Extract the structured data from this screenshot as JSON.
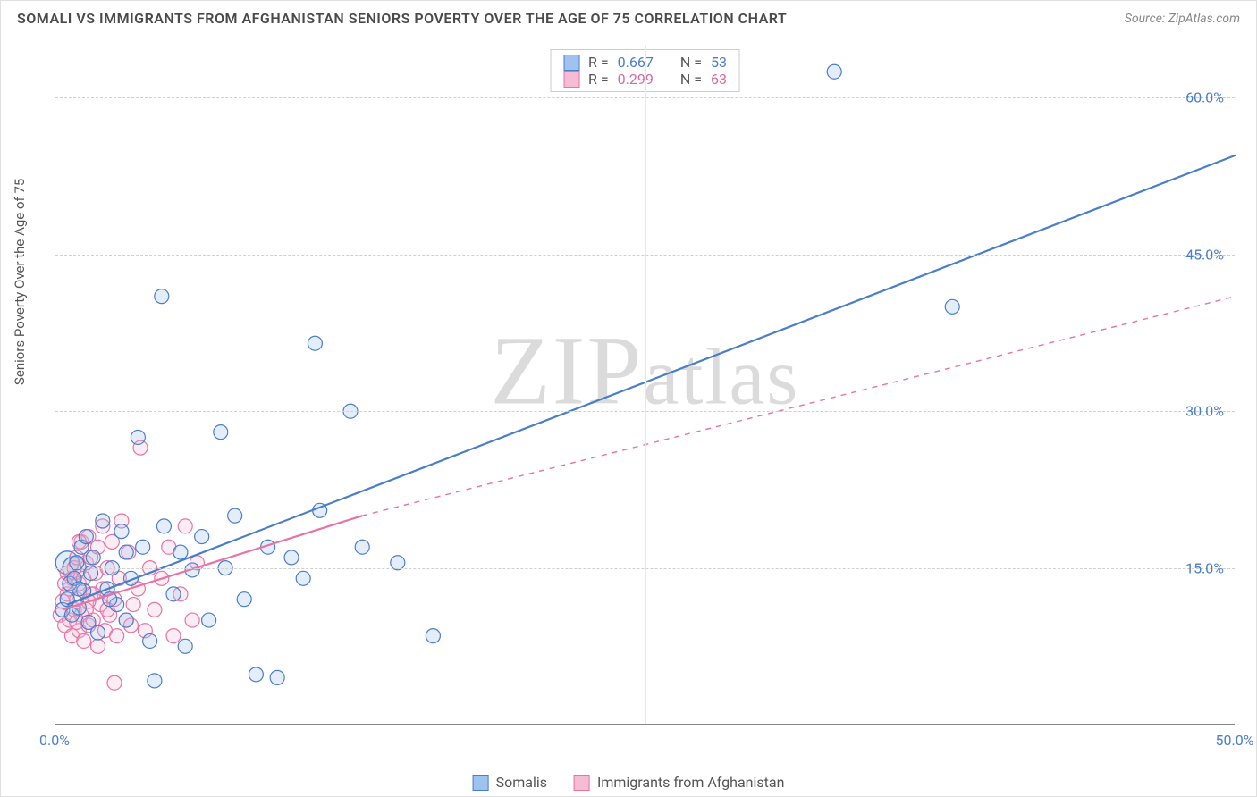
{
  "title": "SOMALI VS IMMIGRANTS FROM AFGHANISTAN SENIORS POVERTY OVER THE AGE OF 75 CORRELATION CHART",
  "source": "Source: ZipAtlas.com",
  "y_axis_label": "Seniors Poverty Over the Age of 75",
  "watermark": "ZIPatlas",
  "chart": {
    "type": "scatter",
    "background_color": "#ffffff",
    "grid_color": "#d0d0d0",
    "axis_color": "#888888",
    "tick_label_color": "#4a7ec9",
    "xlim": [
      0,
      50
    ],
    "ylim": [
      0,
      65
    ],
    "x_ticks": [
      0.0,
      50.0
    ],
    "x_tick_labels": [
      "0.0%",
      "50.0%"
    ],
    "y_ticks": [
      15.0,
      30.0,
      45.0,
      60.0
    ],
    "y_tick_labels": [
      "15.0%",
      "30.0%",
      "45.0%",
      "60.0%"
    ],
    "vgrid_at": [
      25.0
    ],
    "marker_radius": 8,
    "marker_stroke_width": 1.2,
    "marker_fill_opacity": 0.28,
    "line_width": 2.2
  },
  "legend_stats": {
    "rows": [
      {
        "swatch_fill": "#9ec3ef",
        "swatch_stroke": "#4a7ec9",
        "r_label": "R =",
        "r_value": "0.667",
        "n_label": "N =",
        "n_value": "53",
        "value_color": "#4a7ec9"
      },
      {
        "swatch_fill": "#f6bcd3",
        "swatch_stroke": "#e973a4",
        "r_label": "R =",
        "r_value": "0.299",
        "n_label": "N =",
        "n_value": "63",
        "value_color": "#d96aa0"
      }
    ]
  },
  "series_legend": [
    {
      "label": "Somalis",
      "swatch_fill": "#9ec3ef",
      "swatch_stroke": "#4a7ec9"
    },
    {
      "label": "Immigrants from Afghanistan",
      "swatch_fill": "#f6bcd3",
      "swatch_stroke": "#e973a4"
    }
  ],
  "series": {
    "somali": {
      "color_stroke": "#4a7ec9",
      "color_fill": "#9ec3ef",
      "key_points": [
        [
          0.5,
          15.5
        ],
        [
          0.8,
          15.0
        ]
      ],
      "points": [
        [
          0.3,
          11.0
        ],
        [
          0.5,
          12.0
        ],
        [
          0.6,
          13.5
        ],
        [
          0.7,
          10.5
        ],
        [
          0.8,
          14.0
        ],
        [
          0.9,
          15.5
        ],
        [
          1.0,
          11.2
        ],
        [
          1.1,
          17.0
        ],
        [
          1.2,
          12.8
        ],
        [
          1.3,
          18.0
        ],
        [
          1.4,
          9.8
        ],
        [
          1.5,
          14.5
        ],
        [
          1.6,
          16.0
        ],
        [
          1.8,
          8.8
        ],
        [
          2.0,
          19.5
        ],
        [
          2.2,
          13.0
        ],
        [
          2.4,
          15.0
        ],
        [
          2.6,
          11.5
        ],
        [
          2.8,
          18.5
        ],
        [
          3.0,
          10.0
        ],
        [
          3.2,
          14.0
        ],
        [
          3.5,
          27.5
        ],
        [
          3.7,
          17.0
        ],
        [
          4.0,
          8.0
        ],
        [
          4.2,
          4.2
        ],
        [
          4.5,
          41.0
        ],
        [
          4.6,
          19.0
        ],
        [
          5.0,
          12.5
        ],
        [
          5.3,
          16.5
        ],
        [
          5.5,
          7.5
        ],
        [
          5.8,
          14.8
        ],
        [
          6.2,
          18.0
        ],
        [
          6.5,
          10.0
        ],
        [
          7.0,
          28.0
        ],
        [
          7.2,
          15.0
        ],
        [
          7.6,
          20.0
        ],
        [
          8.0,
          12.0
        ],
        [
          8.5,
          4.8
        ],
        [
          9.0,
          17.0
        ],
        [
          9.4,
          4.5
        ],
        [
          10.0,
          16.0
        ],
        [
          10.5,
          14.0
        ],
        [
          11.0,
          36.5
        ],
        [
          11.2,
          20.5
        ],
        [
          12.5,
          30.0
        ],
        [
          13.0,
          17.0
        ],
        [
          14.5,
          15.5
        ],
        [
          16.0,
          8.5
        ],
        [
          33.0,
          62.5
        ],
        [
          38.0,
          40.0
        ],
        [
          2.3,
          12.0
        ],
        [
          3.0,
          16.5
        ],
        [
          1.0,
          13.0
        ]
      ],
      "trend": {
        "x1": 0.5,
        "y1": 11.5,
        "x2": 50.0,
        "y2": 54.5,
        "dash": false
      }
    },
    "afghan": {
      "color_stroke": "#e973a4",
      "color_fill": "#f6bcd3",
      "points": [
        [
          0.2,
          10.5
        ],
        [
          0.3,
          11.8
        ],
        [
          0.4,
          9.5
        ],
        [
          0.5,
          12.5
        ],
        [
          0.6,
          13.0
        ],
        [
          0.6,
          10.0
        ],
        [
          0.7,
          14.0
        ],
        [
          0.7,
          8.5
        ],
        [
          0.8,
          15.0
        ],
        [
          0.8,
          11.0
        ],
        [
          0.9,
          12.0
        ],
        [
          0.9,
          16.0
        ],
        [
          1.0,
          9.0
        ],
        [
          1.0,
          13.5
        ],
        [
          1.1,
          17.5
        ],
        [
          1.1,
          10.5
        ],
        [
          1.2,
          14.0
        ],
        [
          1.2,
          8.0
        ],
        [
          1.3,
          15.5
        ],
        [
          1.3,
          11.0
        ],
        [
          1.4,
          18.0
        ],
        [
          1.4,
          9.5
        ],
        [
          1.5,
          12.5
        ],
        [
          1.5,
          16.0
        ],
        [
          1.6,
          10.0
        ],
        [
          1.7,
          14.5
        ],
        [
          1.8,
          7.5
        ],
        [
          1.8,
          17.0
        ],
        [
          1.9,
          11.5
        ],
        [
          2.0,
          13.0
        ],
        [
          2.0,
          19.0
        ],
        [
          2.1,
          9.0
        ],
        [
          2.2,
          15.0
        ],
        [
          2.3,
          10.5
        ],
        [
          2.4,
          17.5
        ],
        [
          2.5,
          12.0
        ],
        [
          2.6,
          8.5
        ],
        [
          2.7,
          14.0
        ],
        [
          2.8,
          19.5
        ],
        [
          3.0,
          10.0
        ],
        [
          3.1,
          16.5
        ],
        [
          3.3,
          11.5
        ],
        [
          3.5,
          13.0
        ],
        [
          3.6,
          26.5
        ],
        [
          3.8,
          9.0
        ],
        [
          4.0,
          15.0
        ],
        [
          4.2,
          11.0
        ],
        [
          4.5,
          14.0
        ],
        [
          4.8,
          17.0
        ],
        [
          5.0,
          8.5
        ],
        [
          5.3,
          12.5
        ],
        [
          5.5,
          19.0
        ],
        [
          5.8,
          10.0
        ],
        [
          6.0,
          15.5
        ],
        [
          2.5,
          4.0
        ],
        [
          3.2,
          9.5
        ],
        [
          1.6,
          12.5
        ],
        [
          0.5,
          14.5
        ],
        [
          1.0,
          17.5
        ],
        [
          2.2,
          11.0
        ],
        [
          0.4,
          13.5
        ],
        [
          0.9,
          9.8
        ],
        [
          1.4,
          11.8
        ]
      ],
      "trend_solid": {
        "x1": 0.3,
        "y1": 11.0,
        "x2": 13.0,
        "y2": 20.0
      },
      "trend_dash": {
        "x1": 13.0,
        "y1": 20.0,
        "x2": 50.0,
        "y2": 41.0
      }
    }
  }
}
